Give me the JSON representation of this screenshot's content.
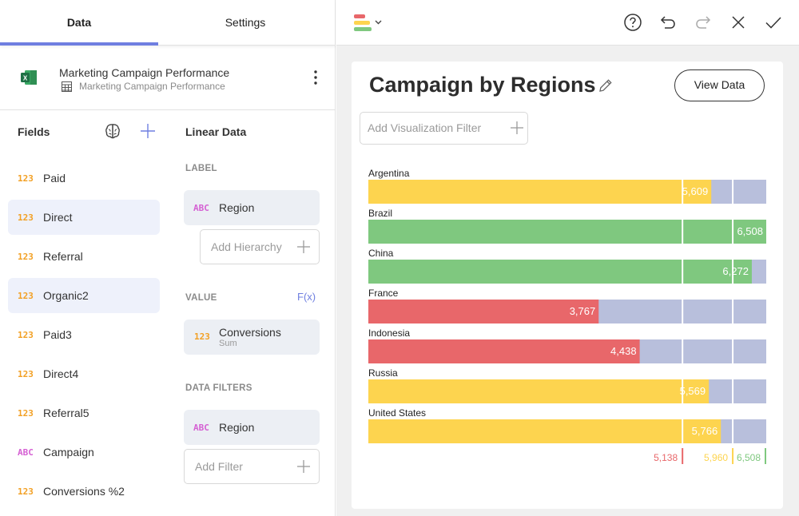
{
  "tabs": [
    {
      "label": "Data",
      "active": true
    },
    {
      "label": "Settings",
      "active": false
    }
  ],
  "datasource": {
    "title": "Marketing Campaign Performance",
    "subtitle": "Marketing Campaign Performance",
    "icon": "excel-icon"
  },
  "fields": {
    "header": "Fields",
    "items": [
      {
        "type": "123",
        "label": "Paid",
        "selected": false
      },
      {
        "type": "123",
        "label": "Direct",
        "selected": true
      },
      {
        "type": "123",
        "label": "Referral",
        "selected": false
      },
      {
        "type": "123",
        "label": "Organic2",
        "selected": true
      },
      {
        "type": "123",
        "label": "Paid3",
        "selected": false
      },
      {
        "type": "123",
        "label": "Direct4",
        "selected": false
      },
      {
        "type": "123",
        "label": "Referral5",
        "selected": false
      },
      {
        "type": "ABC",
        "label": "Campaign",
        "selected": false
      },
      {
        "type": "123",
        "label": "Conversions %2",
        "selected": false
      }
    ]
  },
  "config": {
    "header": "Linear Data",
    "label_section": "LABEL",
    "label_pill": {
      "type": "ABC",
      "label": "Region"
    },
    "add_hierarchy": "Add Hierarchy",
    "value_section": "VALUE",
    "fx_label": "F(x)",
    "value_pill": {
      "type": "123",
      "label": "Conversions",
      "sub": "Sum"
    },
    "filters_section": "DATA FILTERS",
    "filter_pill": {
      "type": "ABC",
      "label": "Region"
    },
    "add_filter": "Add Filter"
  },
  "viz": {
    "title": "Campaign by Regions",
    "view_data": "View Data",
    "add_filter": "Add Visualization Filter"
  },
  "colors": {
    "red": "#e8676a",
    "yellow": "#fdd44f",
    "green": "#7fc87f",
    "track": "#b8bfdc",
    "accent": "#6f7fe0"
  },
  "chart_data": {
    "type": "bullet",
    "categories": [
      "Argentina",
      "Brazil",
      "China",
      "France",
      "Indonesia",
      "Russia",
      "United States"
    ],
    "values": [
      5609,
      6508,
      6272,
      3767,
      4438,
      5569,
      5766
    ],
    "value_labels": [
      "5,609",
      "6,508",
      "6,272",
      "3,767",
      "4,438",
      "5,569",
      "5,766"
    ],
    "thresholds": [
      5138,
      5960,
      6508
    ],
    "threshold_labels": [
      "5,138",
      "5,960",
      "6,508"
    ],
    "xlim": [
      0,
      6508
    ]
  }
}
